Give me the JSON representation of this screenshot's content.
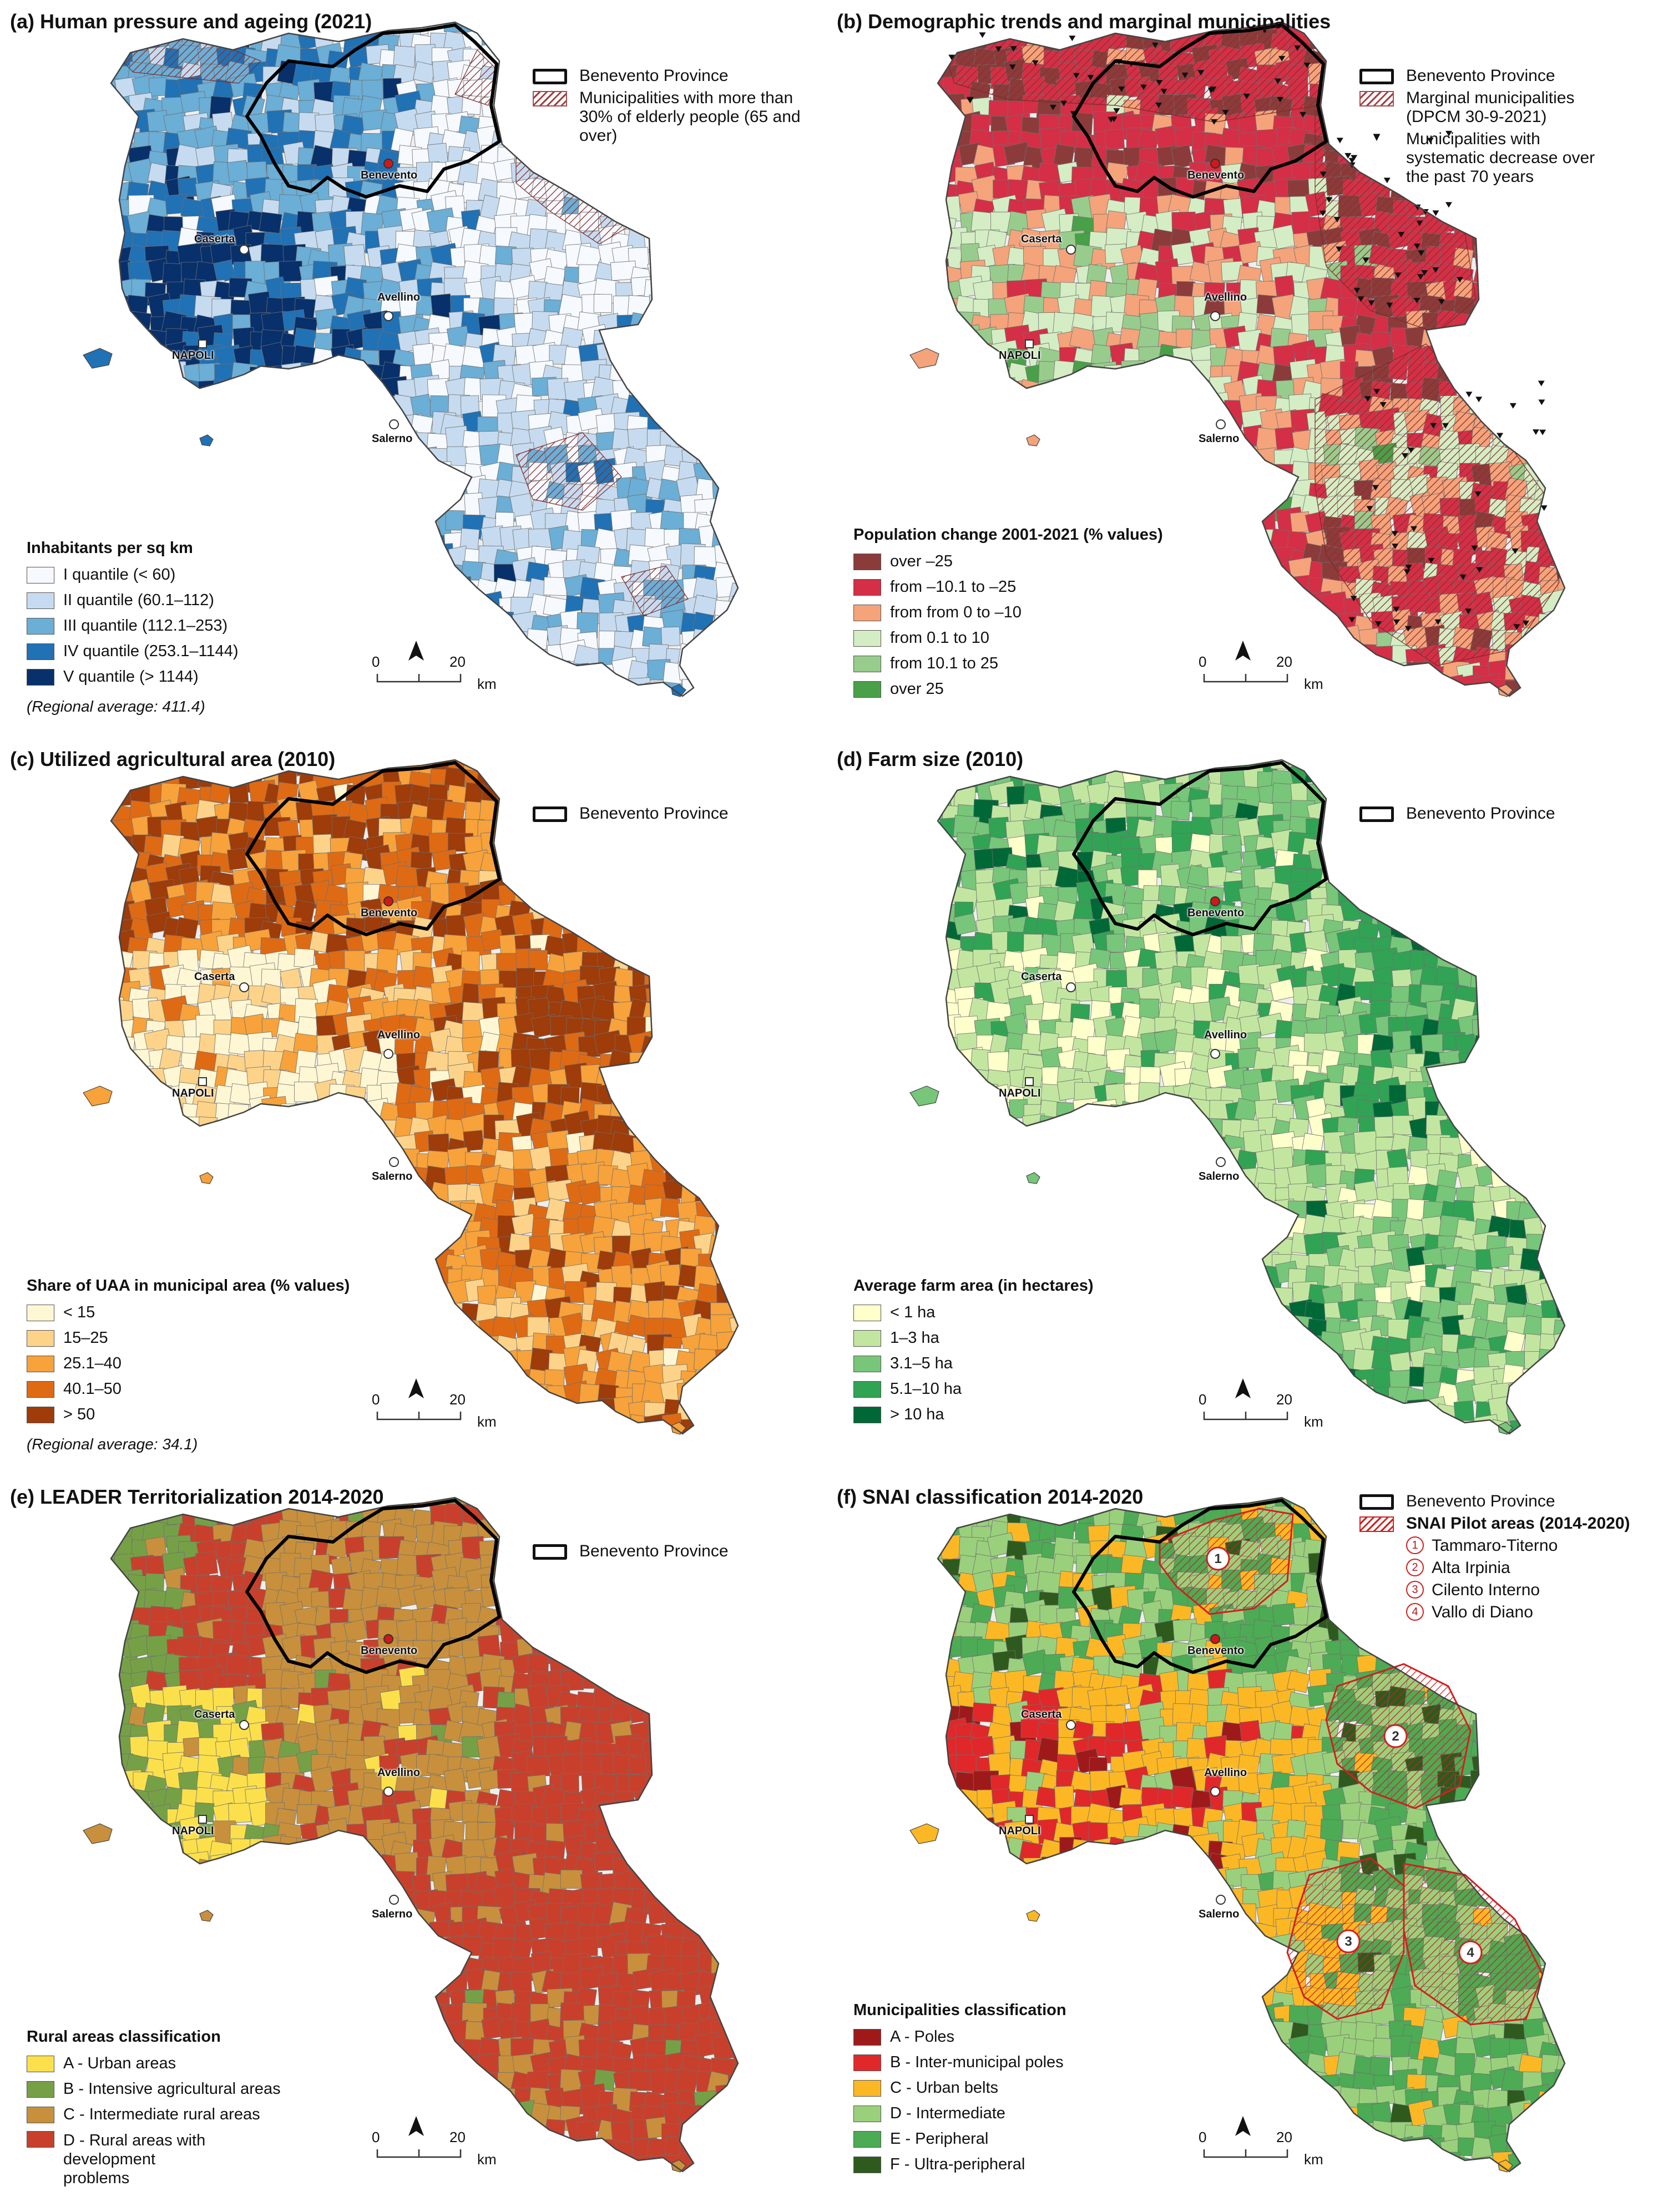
{
  "province_label": "Benevento Province",
  "cities": [
    "Benevento",
    "Caserta",
    "Avellino",
    "NAPOLI",
    "Salerno"
  ],
  "scale": {
    "zero": "0",
    "twenty": "20",
    "unit": "km"
  },
  "panels": {
    "a": {
      "title": "(a) Human pressure and ageing (2021)",
      "hatch_label": "Municipalities with more than 30% of elderly people (65 and over)",
      "legend_title": "Inhabitants per sq km",
      "legend": [
        {
          "label": "I quantile (< 60)",
          "color": "#f6f9fd"
        },
        {
          "label": "II quantile (60.1–112)",
          "color": "#c6dbef"
        },
        {
          "label": "III quantile (112.1–253)",
          "color": "#6baed6"
        },
        {
          "label": "IV quantile (253.1–1144)",
          "color": "#2171b5"
        },
        {
          "label": "V quantile (> 1144)",
          "color": "#08306b"
        }
      ],
      "note": "(Regional average: 411.4)"
    },
    "b": {
      "title": "(b) Demographic trends and marginal municipalities",
      "hatch_label": "Marginal municipalities",
      "hatch_sub": "(DPCM 30-9-2021)",
      "tri_label": "Municipalities with systematic decrease over the past 70 years",
      "legend_title": "Population change 2001-2021 (% values)",
      "legend": [
        {
          "label": "over –25",
          "color": "#8c3b3b"
        },
        {
          "label": "from –10.1 to –25",
          "color": "#d42f46"
        },
        {
          "label": "from from 0 to –10",
          "color": "#f4a37a"
        },
        {
          "label": "from 0.1 to 10",
          "color": "#d4edc4"
        },
        {
          "label": "from 10.1 to 25",
          "color": "#98cc8c"
        },
        {
          "label": "over 25",
          "color": "#4aa048"
        }
      ]
    },
    "c": {
      "title": "(c) Utilized agricultural area (2010)",
      "legend_title": "Share of UAA in municipal area (% values)",
      "legend": [
        {
          "label": "< 15",
          "color": "#fff7d4"
        },
        {
          "label": "15–25",
          "color": "#fdd38a"
        },
        {
          "label": "25.1–40",
          "color": "#f7a23a"
        },
        {
          "label": "40.1–50",
          "color": "#df6a14"
        },
        {
          "label": "> 50",
          "color": "#9e3c0a"
        }
      ],
      "note": "(Regional average: 34.1)"
    },
    "d": {
      "title": "(d) Farm size (2010)",
      "legend_title": "Average farm area (in hectares)",
      "legend": [
        {
          "label": "< 1 ha",
          "color": "#ffffcc"
        },
        {
          "label": "1–3 ha",
          "color": "#c2e6a0"
        },
        {
          "label": "3.1–5 ha",
          "color": "#78c679"
        },
        {
          "label": "5.1–10 ha",
          "color": "#31a354"
        },
        {
          "label": "> 10 ha",
          "color": "#006837"
        }
      ]
    },
    "e": {
      "title": "(e) LEADER Territorialization 2014-2020",
      "legend_title": "Rural areas classification",
      "legend": [
        {
          "label": "A - Urban areas",
          "color": "#fbe04c"
        },
        {
          "label": "B - Intensive agricultural areas",
          "color": "#76a046"
        },
        {
          "label": "C - Intermediate rural areas",
          "color": "#c8903c"
        },
        {
          "label": "D - Rural areas with development problems",
          "color": "#c8402c"
        }
      ]
    },
    "f": {
      "title": "(f) SNAI classification 2014-2020",
      "pilot_label": "SNAI Pilot areas (2014-2020)",
      "pilots": [
        {
          "n": "1",
          "name": "Tammaro-Titerno"
        },
        {
          "n": "2",
          "name": "Alta Irpinia"
        },
        {
          "n": "3",
          "name": "Cilento Interno"
        },
        {
          "n": "4",
          "name": "Vallo di Diano"
        }
      ],
      "legend_title": "Municipalities classification",
      "legend": [
        {
          "label": "A - Poles",
          "color": "#9e1a1a"
        },
        {
          "label": "B - Inter-municipal poles",
          "color": "#e0282a"
        },
        {
          "label": "C - Urban belts",
          "color": "#fbb824"
        },
        {
          "label": "D - Intermediate",
          "color": "#9ad07c"
        },
        {
          "label": "E - Peripheral",
          "color": "#4cab54"
        },
        {
          "label": "F - Ultra-peripheral",
          "color": "#2e5a1e"
        }
      ]
    }
  }
}
